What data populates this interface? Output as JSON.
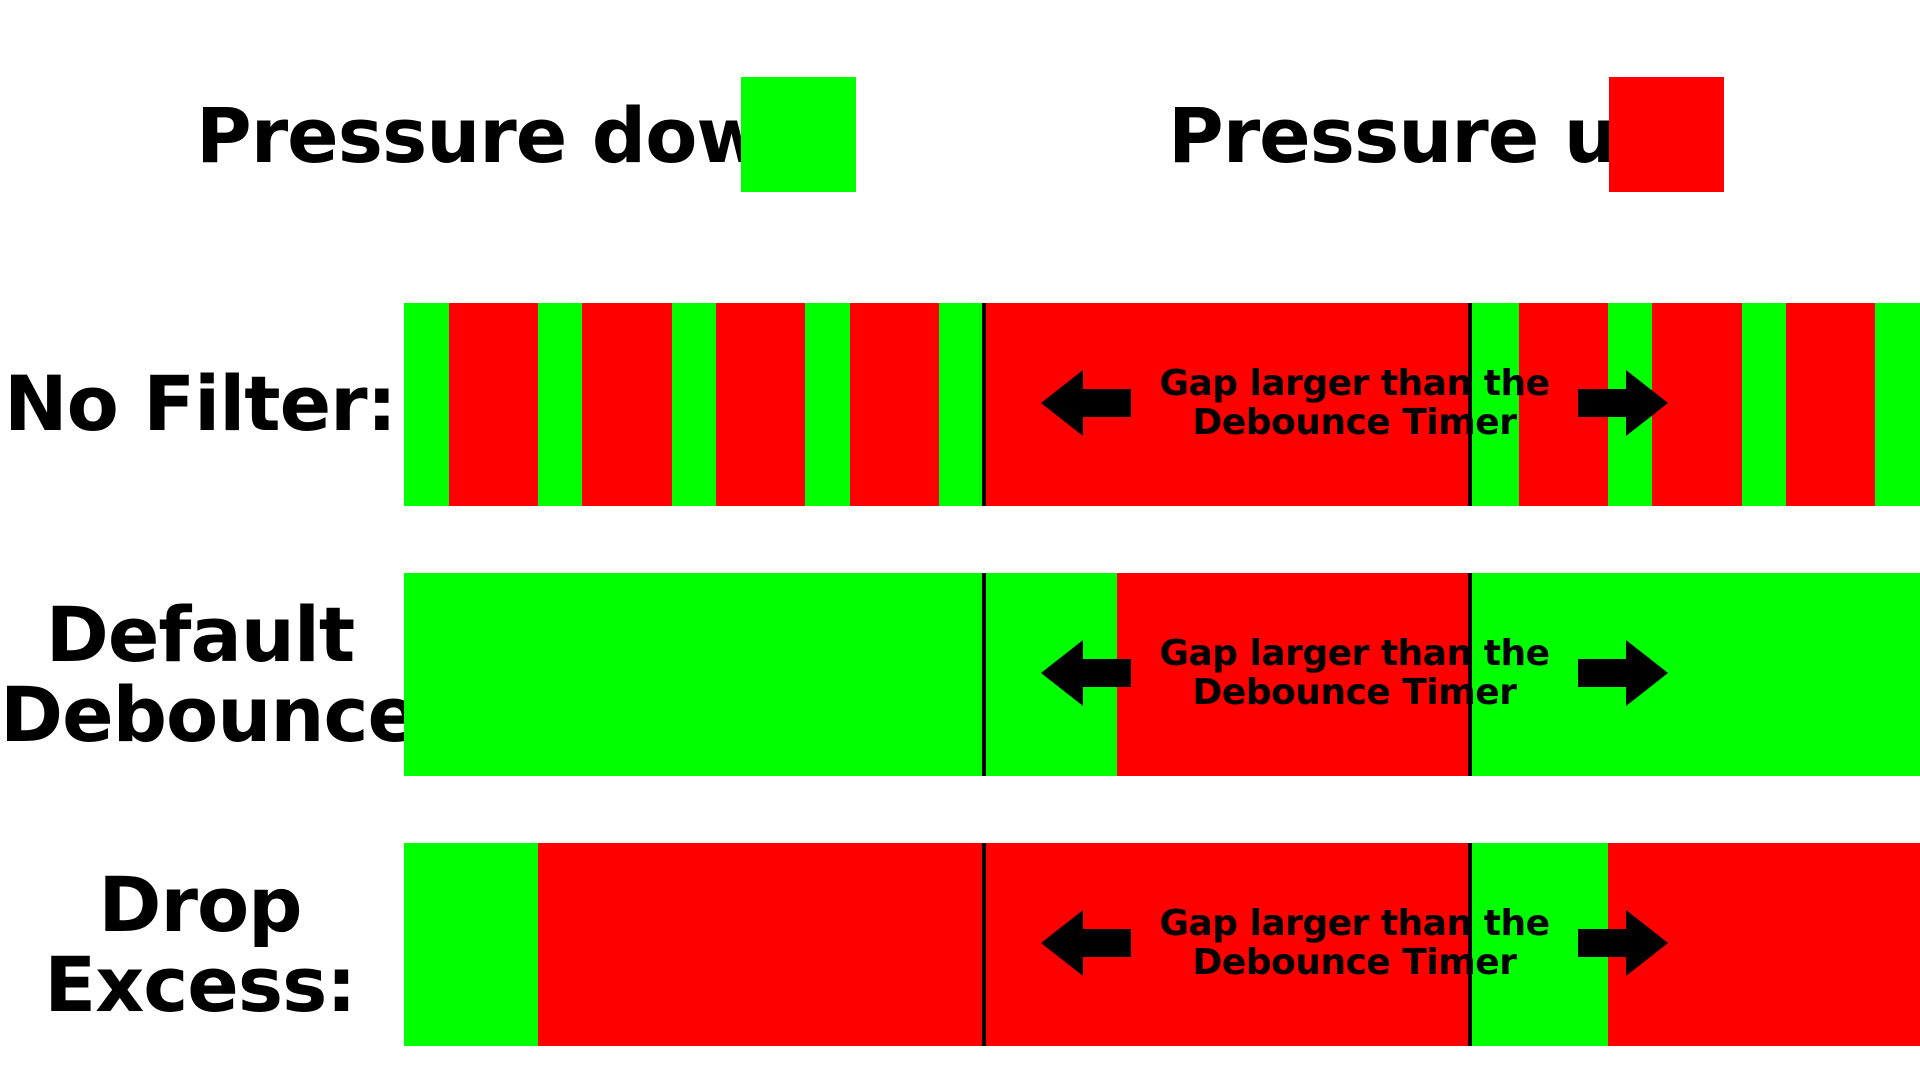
{
  "colors": {
    "pressure_down": "#00ff00",
    "pressure_up": "#ff0000",
    "marker": "#000000"
  },
  "legend": {
    "down_label": "Pressure down:",
    "up_label": "Pressure up:"
  },
  "gap_annotation": {
    "line1": "Gap larger than the",
    "line2": "Debounce Timer"
  },
  "rows": [
    {
      "label": [
        "No Filter:"
      ],
      "segments": [
        {
          "state": "down",
          "start": 0.0,
          "end": 1.0
        },
        {
          "state": "up",
          "start": 1.0,
          "end": 3.0
        },
        {
          "state": "down",
          "start": 3.0,
          "end": 4.0
        },
        {
          "state": "up",
          "start": 4.0,
          "end": 6.0
        },
        {
          "state": "down",
          "start": 6.0,
          "end": 7.0
        },
        {
          "state": "up",
          "start": 7.0,
          "end": 9.0
        },
        {
          "state": "down",
          "start": 9.0,
          "end": 10.0
        },
        {
          "state": "up",
          "start": 10.0,
          "end": 12.0
        },
        {
          "state": "down",
          "start": 12.0,
          "end": 13.0
        },
        {
          "state": "up",
          "start": 13.0,
          "end": 23.9
        },
        {
          "state": "down",
          "start": 23.9,
          "end": 25.0
        },
        {
          "state": "up",
          "start": 25.0,
          "end": 27.0
        },
        {
          "state": "down",
          "start": 27.0,
          "end": 28.0
        },
        {
          "state": "up",
          "start": 28.0,
          "end": 30.0
        },
        {
          "state": "down",
          "start": 30.0,
          "end": 31.0
        },
        {
          "state": "up",
          "start": 31.0,
          "end": 33.0
        },
        {
          "state": "down",
          "start": 33.0,
          "end": 34.0
        }
      ]
    },
    {
      "label": [
        "Default",
        "Debounce:"
      ],
      "segments": [
        {
          "state": "down",
          "start": 0.0,
          "end": 16.0
        },
        {
          "state": "up",
          "start": 16.0,
          "end": 23.9
        },
        {
          "state": "down",
          "start": 23.9,
          "end": 34.0
        }
      ]
    },
    {
      "label": [
        "Drop",
        "Excess:"
      ],
      "segments": [
        {
          "state": "down",
          "start": 0.0,
          "end": 3.0
        },
        {
          "state": "up",
          "start": 3.0,
          "end": 23.9
        },
        {
          "state": "down",
          "start": 23.9,
          "end": 27.0
        },
        {
          "state": "up",
          "start": 27.0,
          "end": 34.0
        }
      ]
    }
  ],
  "timeline": {
    "start": 0.0,
    "end": 34.0,
    "gap_start": 13.0,
    "gap_end": 23.9
  }
}
